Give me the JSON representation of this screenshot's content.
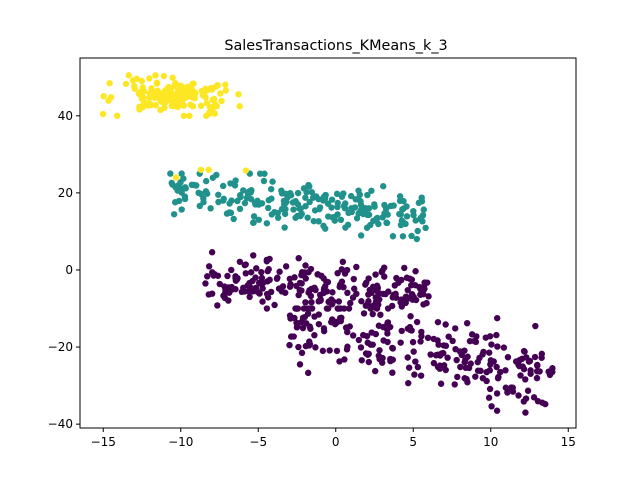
{
  "chart_data": {
    "type": "scatter",
    "title": "SalesTransactions_KMeans_k_3",
    "xlabel": "",
    "ylabel": "",
    "xlim": [
      -16.5,
      15.5
    ],
    "ylim": [
      -41,
      55
    ],
    "xticks": [
      -15,
      -10,
      -5,
      0,
      5,
      10,
      15
    ],
    "yticks": [
      -40,
      -20,
      0,
      20,
      40
    ],
    "grid": false,
    "legend": false,
    "colors": {
      "cluster_0": "#440154",
      "cluster_1": "#21918c",
      "cluster_2": "#fde725"
    },
    "clusters": [
      {
        "color": "#440154",
        "count": 470,
        "approx_centroid": [
          3.4,
          -16.5
        ],
        "extent": {
          "upper_band_x": [
            -8.5,
            6.0
          ],
          "upper_band_y": [
            -10.0,
            5.0
          ],
          "lower_band_x": [
            -3.0,
            14.0
          ],
          "lower_band_y": [
            -37.0,
            -10.0
          ]
        }
      },
      {
        "color": "#21918c",
        "count": 230,
        "approx_centroid": [
          -2.5,
          15.5
        ],
        "extent": {
          "x": [
            -10.7,
            6.0
          ],
          "y": [
            3.0,
            25.0
          ]
        }
      },
      {
        "color": "#fde725",
        "count": 155,
        "approx_centroid": [
          -10.3,
          45.2
        ],
        "extent": {
          "x": [
            -15.2,
            -6.2
          ],
          "y": [
            40.0,
            50.5
          ]
        },
        "outliers": [
          [
            -10.3,
            24.0
          ],
          [
            -8.7,
            26.0
          ],
          [
            -8.2,
            26.0
          ],
          [
            -5.8,
            25.8
          ]
        ]
      }
    ]
  }
}
